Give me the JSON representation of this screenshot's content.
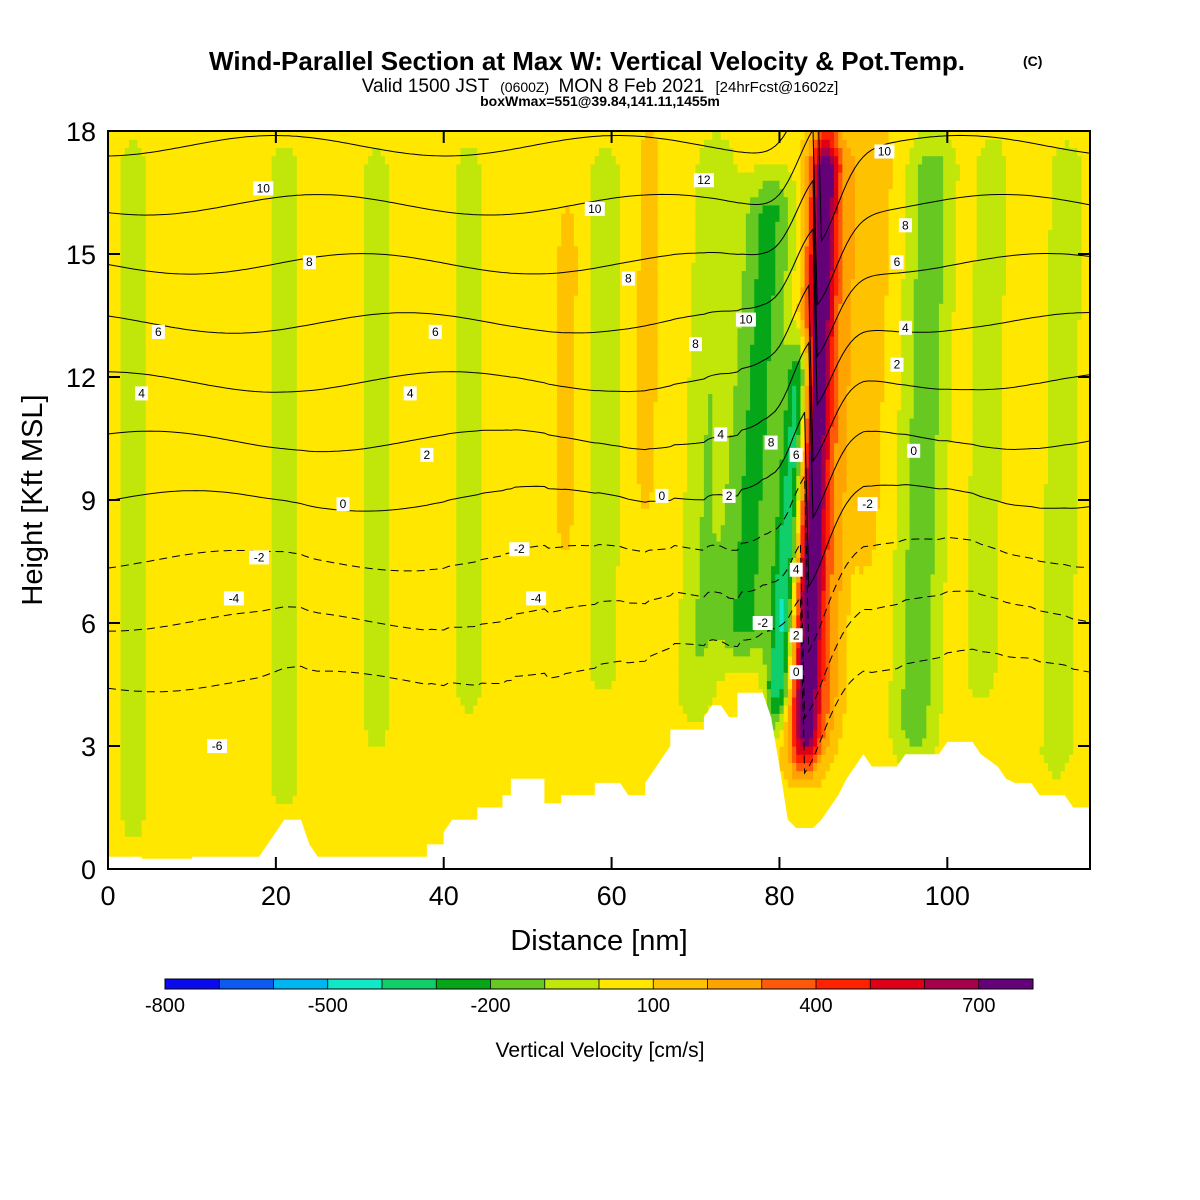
{
  "chart_data": {
    "type": "heatmap",
    "title": "Wind-Parallel Section at Max W: Vertical Velocity & Pot.Temp.",
    "title_mark": "(C)",
    "subtitle_parts": [
      "Valid 1500 JST",
      "(0600Z)",
      "MON 8 Feb 2021",
      "[24hrFcst@1602z]"
    ],
    "subtitle2": "boxWmax=551@39.84,141.11,1455m",
    "xlabel": "Distance [nm]",
    "ylabel": "Height [Kft MSL]",
    "xlim": [
      0,
      117
    ],
    "ylim": [
      0,
      18
    ],
    "x_ticks": [
      0,
      20,
      40,
      60,
      80,
      100
    ],
    "y_ticks": [
      0,
      3,
      6,
      9,
      12,
      15,
      18
    ],
    "colorbar": {
      "title": "Vertical Velocity [cm/s]",
      "labels": [
        {
          "value": -800,
          "text": "-800"
        },
        {
          "value": -500,
          "text": "-500"
        },
        {
          "value": -200,
          "text": "-200"
        },
        {
          "value": 100,
          "text": "100"
        },
        {
          "value": 400,
          "text": "400"
        },
        {
          "value": 700,
          "text": "700"
        }
      ],
      "boundaries": [
        -800,
        -700,
        -600,
        -500,
        -400,
        -300,
        -200,
        -100,
        0,
        100,
        200,
        300,
        400,
        500,
        600,
        700,
        800
      ],
      "colors": [
        "#0a0aee",
        "#0b5bf0",
        "#00b6f2",
        "#10e8c8",
        "#10cf6a",
        "#05a618",
        "#66c820",
        "#c0e60a",
        "#ffe700",
        "#ffc200",
        "#ffa300",
        "#ff5a0a",
        "#ff2200",
        "#dd0018",
        "#a6004a",
        "#640078"
      ]
    },
    "terrain": [
      [
        0,
        0.3
      ],
      [
        4,
        0.3
      ],
      [
        4,
        0.25
      ],
      [
        10,
        0.25
      ],
      [
        10,
        0.3
      ],
      [
        18,
        0.3
      ],
      [
        19,
        0.6
      ],
      [
        20,
        0.9
      ],
      [
        21,
        1.2
      ],
      [
        23,
        1.2
      ],
      [
        24,
        0.6
      ],
      [
        25,
        0.3
      ],
      [
        38,
        0.3
      ],
      [
        38,
        0.6
      ],
      [
        40,
        0.6
      ],
      [
        40,
        0.9
      ],
      [
        41,
        1.2
      ],
      [
        44,
        1.2
      ],
      [
        44,
        1.5
      ],
      [
        47,
        1.5
      ],
      [
        47,
        1.8
      ],
      [
        48,
        1.8
      ],
      [
        48,
        2.2
      ],
      [
        52,
        2.2
      ],
      [
        52,
        1.6
      ],
      [
        54,
        1.6
      ],
      [
        54,
        1.8
      ],
      [
        58,
        1.8
      ],
      [
        58,
        2.1
      ],
      [
        61,
        2.1
      ],
      [
        62,
        1.8
      ],
      [
        64,
        1.8
      ],
      [
        64,
        2.1
      ],
      [
        65,
        2.4
      ],
      [
        66,
        2.7
      ],
      [
        67,
        3.0
      ],
      [
        67,
        3.4
      ],
      [
        71,
        3.4
      ],
      [
        71,
        3.7
      ],
      [
        72,
        4.0
      ],
      [
        73,
        4.0
      ],
      [
        74,
        3.7
      ],
      [
        75,
        3.7
      ],
      [
        75,
        4.3
      ],
      [
        78,
        4.3
      ],
      [
        79,
        3.7
      ],
      [
        80,
        2.5
      ],
      [
        81,
        1.2
      ],
      [
        82,
        1.0
      ],
      [
        84,
        1.0
      ],
      [
        85,
        1.2
      ],
      [
        86,
        1.5
      ],
      [
        87,
        1.8
      ],
      [
        88,
        2.2
      ],
      [
        89,
        2.5
      ],
      [
        90,
        2.8
      ],
      [
        91,
        2.5
      ],
      [
        94,
        2.5
      ],
      [
        95,
        2.8
      ],
      [
        99,
        2.8
      ],
      [
        100,
        3.1
      ],
      [
        103,
        3.1
      ],
      [
        104,
        2.8
      ],
      [
        106,
        2.5
      ],
      [
        107,
        2.2
      ],
      [
        108,
        2.1
      ],
      [
        110,
        2.1
      ],
      [
        111,
        1.8
      ],
      [
        114,
        1.8
      ],
      [
        115,
        1.5
      ],
      [
        117,
        1.5
      ]
    ],
    "w_features": [
      {
        "x": 83.0,
        "z0": 2.5,
        "z1": 18,
        "shear": 0.17,
        "width": 1.8,
        "amp": 800
      },
      {
        "x": 79.5,
        "z0": 3.5,
        "z1": 13,
        "shear": 0.35,
        "width": 1.5,
        "amp": -460
      },
      {
        "x": 75.5,
        "z0": 5.0,
        "z1": 17,
        "shear": 0.3,
        "width": 3.2,
        "amp": -300
      },
      {
        "x": 96.0,
        "z0": 2.5,
        "z1": 18,
        "shear": 0.15,
        "width": 2.8,
        "amp": -230
      },
      {
        "x": 90.0,
        "z0": 7.5,
        "z1": 18,
        "shear": 0.2,
        "width": 1.4,
        "amp": 120
      },
      {
        "x": 86.0,
        "z0": 3.0,
        "z1": 18,
        "shear": 0.2,
        "width": 1.3,
        "amp": 130
      },
      {
        "x": 54.5,
        "z0": 8.0,
        "z1": 16,
        "shear": 0.05,
        "width": 1.0,
        "amp": 115
      },
      {
        "x": 64.0,
        "z0": 9.0,
        "z1": 18,
        "shear": 0.05,
        "width": 1.0,
        "amp": 110
      },
      {
        "x": 104.0,
        "z0": 4.0,
        "z1": 18,
        "shear": 0.1,
        "width": 2.0,
        "amp": -150
      },
      {
        "x": 113.0,
        "z0": 2.0,
        "z1": 18,
        "shear": 0.08,
        "width": 2.5,
        "amp": -120
      },
      {
        "x": 70.0,
        "z0": 3.5,
        "z1": 18,
        "shear": 0.18,
        "width": 2.5,
        "amp": -160
      },
      {
        "x": 3.0,
        "z0": 0.5,
        "z1": 18,
        "shear": 0.0,
        "width": 2.2,
        "amp": -120
      },
      {
        "x": 21.0,
        "z0": 1.2,
        "z1": 18,
        "shear": 0.0,
        "width": 2.5,
        "amp": -110
      },
      {
        "x": 32.0,
        "z0": 2.5,
        "z1": 18,
        "shear": 0.0,
        "width": 2.0,
        "amp": -105
      },
      {
        "x": 43.0,
        "z0": 3.5,
        "z1": 18,
        "shear": 0.0,
        "width": 2.2,
        "amp": -110
      },
      {
        "x": 59.0,
        "z0": 4.0,
        "z1": 18,
        "shear": 0.02,
        "width": 2.5,
        "amp": -110
      }
    ],
    "theta_levels": [
      -6,
      -4,
      -2,
      0,
      2,
      4,
      6,
      8,
      10,
      12
    ],
    "theta_labels": [
      {
        "x": 18.5,
        "z": 16.6,
        "text": "10"
      },
      {
        "x": 24,
        "z": 14.8,
        "text": "8"
      },
      {
        "x": 6,
        "z": 13.1,
        "text": "6"
      },
      {
        "x": 4,
        "z": 11.6,
        "text": "4"
      },
      {
        "x": 39,
        "z": 13.1,
        "text": "6"
      },
      {
        "x": 36,
        "z": 11.6,
        "text": "4"
      },
      {
        "x": 38,
        "z": 10.1,
        "text": "2"
      },
      {
        "x": 28,
        "z": 8.9,
        "text": "0"
      },
      {
        "x": 18,
        "z": 7.6,
        "text": "-2"
      },
      {
        "x": 15,
        "z": 6.6,
        "text": "-4"
      },
      {
        "x": 13,
        "z": 3.0,
        "text": "-6"
      },
      {
        "x": 58,
        "z": 16.1,
        "text": "10"
      },
      {
        "x": 62,
        "z": 14.4,
        "text": "8"
      },
      {
        "x": 71,
        "z": 16.8,
        "text": "12"
      },
      {
        "x": 66,
        "z": 9.1,
        "text": "0"
      },
      {
        "x": 49,
        "z": 7.8,
        "text": "-2"
      },
      {
        "x": 51,
        "z": 6.6,
        "text": "-4"
      },
      {
        "x": 76,
        "z": 13.4,
        "text": "10"
      },
      {
        "x": 70,
        "z": 12.8,
        "text": "8"
      },
      {
        "x": 73,
        "z": 10.6,
        "text": "4"
      },
      {
        "x": 74,
        "z": 9.1,
        "text": "2"
      },
      {
        "x": 79,
        "z": 10.4,
        "text": "8"
      },
      {
        "x": 82,
        "z": 10.1,
        "text": "6"
      },
      {
        "x": 82,
        "z": 7.3,
        "text": "4"
      },
      {
        "x": 82,
        "z": 5.7,
        "text": "2"
      },
      {
        "x": 82,
        "z": 4.8,
        "text": "0"
      },
      {
        "x": 78,
        "z": 6.0,
        "text": "-2"
      },
      {
        "x": 92.5,
        "z": 17.5,
        "text": "10"
      },
      {
        "x": 95,
        "z": 15.7,
        "text": "8"
      },
      {
        "x": 94,
        "z": 14.8,
        "text": "6"
      },
      {
        "x": 95,
        "z": 13.2,
        "text": "4"
      },
      {
        "x": 94,
        "z": 12.3,
        "text": "2"
      },
      {
        "x": 96,
        "z": 10.2,
        "text": "0"
      },
      {
        "x": 90.5,
        "z": 8.9,
        "text": "-2"
      }
    ]
  }
}
